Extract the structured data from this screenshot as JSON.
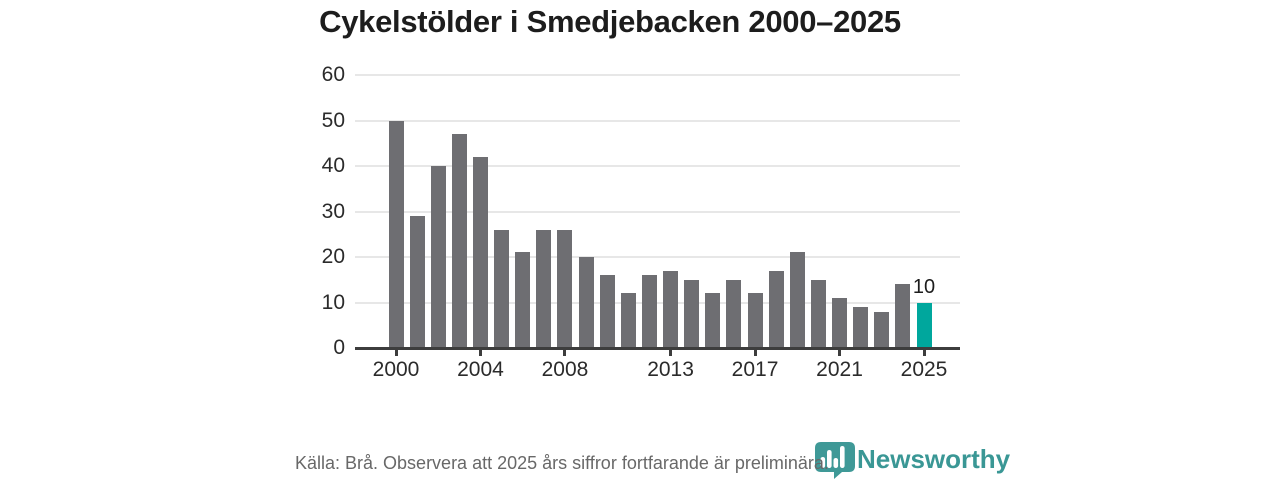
{
  "title": "Cykelstölder i Smedjebacken 2000–2025",
  "chart_data": {
    "type": "bar",
    "title": "Cykelstölder i Smedjebacken 2000–2025",
    "x": [
      2000,
      2001,
      2002,
      2003,
      2004,
      2005,
      2006,
      2007,
      2008,
      2009,
      2010,
      2011,
      2012,
      2013,
      2014,
      2015,
      2016,
      2017,
      2018,
      2019,
      2020,
      2021,
      2022,
      2023,
      2024,
      2025
    ],
    "values": [
      50,
      29,
      40,
      47,
      42,
      26,
      21,
      26,
      26,
      20,
      16,
      12,
      16,
      17,
      15,
      12,
      15,
      12,
      17,
      21,
      15,
      11,
      9,
      8,
      14,
      10
    ],
    "highlight_year": 2025,
    "annotation": {
      "year": 2025,
      "text": "10"
    },
    "y_ticks": [
      0,
      10,
      20,
      30,
      40,
      50,
      60
    ],
    "x_tick_years": [
      2000,
      2004,
      2008,
      2013,
      2017,
      2021,
      2025
    ],
    "ylim": [
      0,
      60
    ],
    "grid": true,
    "legend": "none",
    "bar_color": "#6e6e72",
    "highlight_color": "#00a79d",
    "gridline_color": "#e7e7e7",
    "axis_color": "#3d3d3d"
  },
  "footer": {
    "source_text": "Källa: Brå. Observera att 2025 års siffror fortfarande är preliminära."
  },
  "logo": {
    "icon": "newsworthy-badge-icon",
    "text": "Newsworthy",
    "color": "#3a9795"
  }
}
